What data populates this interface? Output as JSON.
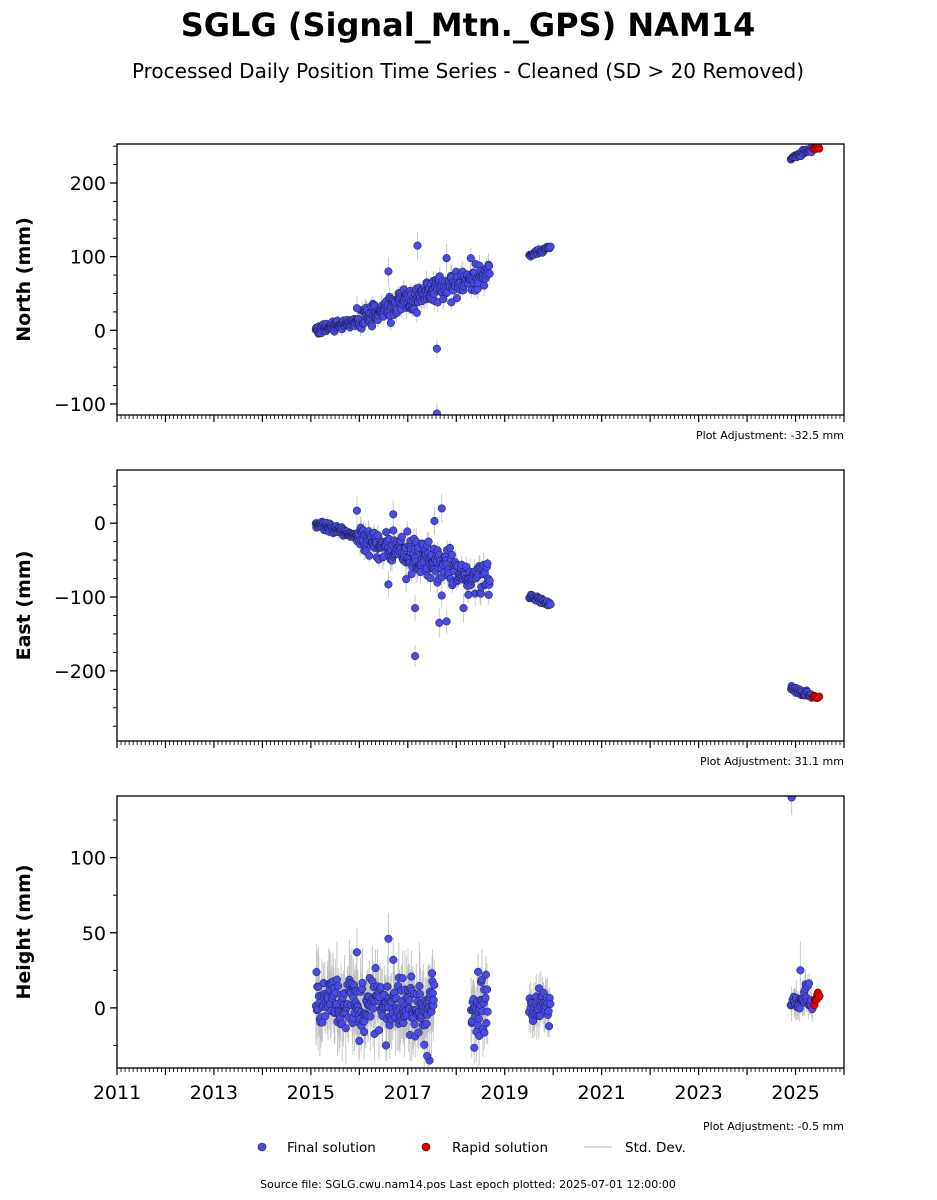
{
  "title": "SGLG (Signal_Mtn._GPS) NAM14",
  "subtitle": "Processed Daily Position Time Series - Cleaned (SD > 20 Removed)",
  "footer": "Source file: SGLG.cwu.nam14.pos  Last epoch plotted: 2025-07-01 12:00:00",
  "legend": {
    "final": "Final solution",
    "rapid": "Rapid solution",
    "std": "Std. Dev."
  },
  "colors": {
    "final": "#4a4ae6",
    "rapid": "#e00000",
    "std": "#b8b8b8",
    "marker_edge": "#1a1a40"
  },
  "chart_data": [
    {
      "type": "scatter",
      "ylabel": "North (mm)",
      "adjustment": "Plot Adjustment: -32.5 mm",
      "xlim": [
        2011,
        2026
      ],
      "ylim": [
        -115,
        253
      ],
      "yticks": [
        -100,
        0,
        100,
        200
      ],
      "xticks": [
        2011,
        2013,
        2015,
        2017,
        2019,
        2021,
        2023,
        2025
      ],
      "show_xtick_labels": false,
      "segments": [
        {
          "x0": 2015.1,
          "x1": 2016.0,
          "y0": 0,
          "y1": 13,
          "noise": 3,
          "n": 90,
          "sd": 6
        },
        {
          "x0": 2016.0,
          "x1": 2016.9,
          "y0": 14,
          "y1": 40,
          "noise": 8,
          "n": 90,
          "sd": 10
        },
        {
          "x0": 2016.9,
          "x1": 2017.65,
          "y0": 40,
          "y1": 58,
          "noise": 9,
          "n": 80,
          "sd": 11
        },
        {
          "x0": 2017.65,
          "x1": 2018.7,
          "y0": 55,
          "y1": 80,
          "noise": 9,
          "n": 80,
          "sd": 11
        },
        {
          "x0": 2019.5,
          "x1": 2019.95,
          "y0": 103,
          "y1": 112,
          "noise": 2,
          "n": 30,
          "sd": 4
        },
        {
          "x0": 2024.9,
          "x1": 2025.35,
          "y0": 234,
          "y1": 247,
          "noise": 2,
          "n": 35,
          "sd": 3
        }
      ],
      "outliers": [
        [
          2017.2,
          115
        ],
        [
          2017.6,
          -25
        ],
        [
          2017.6,
          -113
        ],
        [
          2016.6,
          80
        ],
        [
          2017.8,
          98
        ],
        [
          2018.3,
          98
        ],
        [
          2016.65,
          10
        ],
        [
          2017.9,
          38
        ],
        [
          2015.95,
          30
        ]
      ],
      "rapid": {
        "x0": 2025.35,
        "x1": 2025.5,
        "y0": 247,
        "y1": 249,
        "noise": 1,
        "n": 6
      }
    },
    {
      "type": "scatter",
      "ylabel": "East (mm)",
      "adjustment": "Plot Adjustment: 31.1 mm",
      "xlim": [
        2011,
        2026
      ],
      "ylim": [
        -295,
        72
      ],
      "yticks": [
        -200,
        -100,
        0
      ],
      "xticks": [
        2011,
        2013,
        2015,
        2017,
        2019,
        2021,
        2023,
        2025
      ],
      "show_xtick_labels": false,
      "segments": [
        {
          "x0": 2015.1,
          "x1": 2016.0,
          "y0": -1,
          "y1": -18,
          "noise": 3,
          "n": 90,
          "sd": 6
        },
        {
          "x0": 2016.0,
          "x1": 2016.9,
          "y0": -18,
          "y1": -40,
          "noise": 9,
          "n": 90,
          "sd": 11
        },
        {
          "x0": 2016.9,
          "x1": 2017.65,
          "y0": -40,
          "y1": -55,
          "noise": 12,
          "n": 80,
          "sd": 13
        },
        {
          "x0": 2017.65,
          "x1": 2018.7,
          "y0": -55,
          "y1": -80,
          "noise": 10,
          "n": 80,
          "sd": 12
        },
        {
          "x0": 2019.5,
          "x1": 2019.95,
          "y0": -98,
          "y1": -110,
          "noise": 2,
          "n": 30,
          "sd": 4
        },
        {
          "x0": 2024.9,
          "x1": 2025.35,
          "y0": -223,
          "y1": -235,
          "noise": 2,
          "n": 35,
          "sd": 3
        }
      ],
      "outliers": [
        [
          2017.15,
          -180
        ],
        [
          2017.15,
          -115
        ],
        [
          2017.65,
          -135
        ],
        [
          2017.8,
          -133
        ],
        [
          2017.7,
          20
        ],
        [
          2017.55,
          3
        ],
        [
          2016.7,
          12
        ],
        [
          2015.95,
          17
        ],
        [
          2016.6,
          -83
        ],
        [
          2018.15,
          -115
        ],
        [
          2018.25,
          -97
        ],
        [
          2017.7,
          -98
        ]
      ],
      "rapid": {
        "x0": 2025.35,
        "x1": 2025.5,
        "y0": -235,
        "y1": -237,
        "noise": 1,
        "n": 6
      }
    },
    {
      "type": "scatter",
      "ylabel": "Height (mm)",
      "adjustment": "Plot Adjustment: -0.5 mm",
      "xlim": [
        2011,
        2026
      ],
      "ylim": [
        -40,
        141
      ],
      "yticks": [
        0,
        50,
        100
      ],
      "xticks": [
        2011,
        2013,
        2015,
        2017,
        2019,
        2021,
        2023,
        2025
      ],
      "show_xtick_labels": true,
      "segments": [
        {
          "x0": 2015.1,
          "x1": 2016.9,
          "y0": 5,
          "y1": 2,
          "noise": 9,
          "n": 170,
          "sd": 18
        },
        {
          "x0": 2016.9,
          "x1": 2017.55,
          "y0": 0,
          "y1": 0,
          "noise": 10,
          "n": 70,
          "sd": 20
        },
        {
          "x0": 2018.3,
          "x1": 2018.65,
          "y0": 0,
          "y1": 0,
          "noise": 8,
          "n": 35,
          "sd": 16
        },
        {
          "x0": 2019.5,
          "x1": 2019.95,
          "y0": 0,
          "y1": 0,
          "noise": 6,
          "n": 35,
          "sd": 12
        },
        {
          "x0": 2024.9,
          "x1": 2025.35,
          "y0": 5,
          "y1": 5,
          "noise": 4,
          "n": 35,
          "sd": 8
        }
      ],
      "outliers": [
        [
          2024.92,
          140
        ],
        [
          2016.6,
          46
        ],
        [
          2016.7,
          32
        ],
        [
          2015.95,
          37
        ],
        [
          2017.45,
          -35
        ],
        [
          2017.4,
          -32
        ],
        [
          2016.55,
          -25
        ],
        [
          2016.0,
          -22
        ],
        [
          2018.45,
          24
        ],
        [
          2017.5,
          23
        ],
        [
          2025.1,
          25
        ]
      ],
      "rapid": {
        "x0": 2025.38,
        "x1": 2025.5,
        "y0": 2,
        "y1": 11,
        "noise": 1.5,
        "n": 8
      }
    }
  ]
}
